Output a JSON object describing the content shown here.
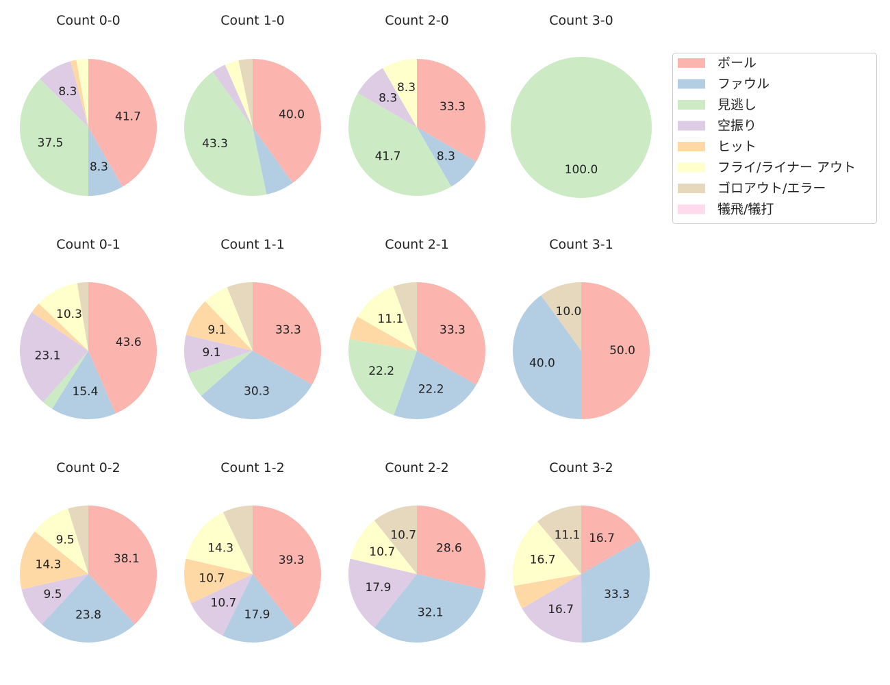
{
  "chart_data": {
    "type": "pie",
    "legend_position": "right",
    "categories": [
      "ボール",
      "ファウル",
      "見逃し",
      "空振り",
      "ヒット",
      "フライ/ライナー アウト",
      "ゴロアウト/エラー",
      "犠飛/犠打"
    ],
    "colors": [
      "#fbb4ae",
      "#b3cde3",
      "#ccebc5",
      "#decbe4",
      "#fed9a6",
      "#ffffcc",
      "#e5d8bd",
      "#fddaec"
    ],
    "label_format": "%.1f",
    "charts": [
      {
        "title": "Count 0-0",
        "values": [
          41.7,
          8.3,
          37.5,
          8.3,
          1.4,
          2.8,
          0,
          0
        ]
      },
      {
        "title": "Count 1-0",
        "values": [
          40.0,
          6.7,
          43.3,
          3.3,
          0,
          3.3,
          3.3,
          0
        ]
      },
      {
        "title": "Count 2-0",
        "values": [
          33.3,
          8.3,
          41.7,
          8.3,
          0,
          8.3,
          0,
          0
        ]
      },
      {
        "title": "Count 3-0",
        "values": [
          0,
          0,
          100.0,
          0,
          0,
          0,
          0,
          0
        ]
      },
      {
        "title": "Count 0-1",
        "values": [
          43.6,
          15.4,
          2.6,
          23.1,
          2.6,
          10.3,
          2.6,
          0
        ]
      },
      {
        "title": "Count 1-1",
        "values": [
          33.3,
          30.3,
          6.1,
          9.1,
          9.1,
          6.1,
          6.1,
          0
        ]
      },
      {
        "title": "Count 2-1",
        "values": [
          33.3,
          22.2,
          22.2,
          0,
          5.6,
          11.1,
          5.6,
          0
        ]
      },
      {
        "title": "Count 3-1",
        "values": [
          50.0,
          40.0,
          0,
          0,
          0,
          0,
          10.0,
          0
        ]
      },
      {
        "title": "Count 0-2",
        "values": [
          38.1,
          23.8,
          0,
          9.5,
          14.3,
          9.5,
          4.8,
          0
        ]
      },
      {
        "title": "Count 1-2",
        "values": [
          39.3,
          17.9,
          0,
          10.7,
          10.7,
          14.3,
          7.1,
          0
        ]
      },
      {
        "title": "Count 2-2",
        "values": [
          28.6,
          32.1,
          0,
          17.9,
          0,
          10.7,
          10.7,
          0
        ]
      },
      {
        "title": "Count 3-2",
        "values": [
          16.7,
          33.3,
          0,
          16.7,
          5.6,
          16.7,
          11.1,
          0
        ]
      }
    ]
  }
}
